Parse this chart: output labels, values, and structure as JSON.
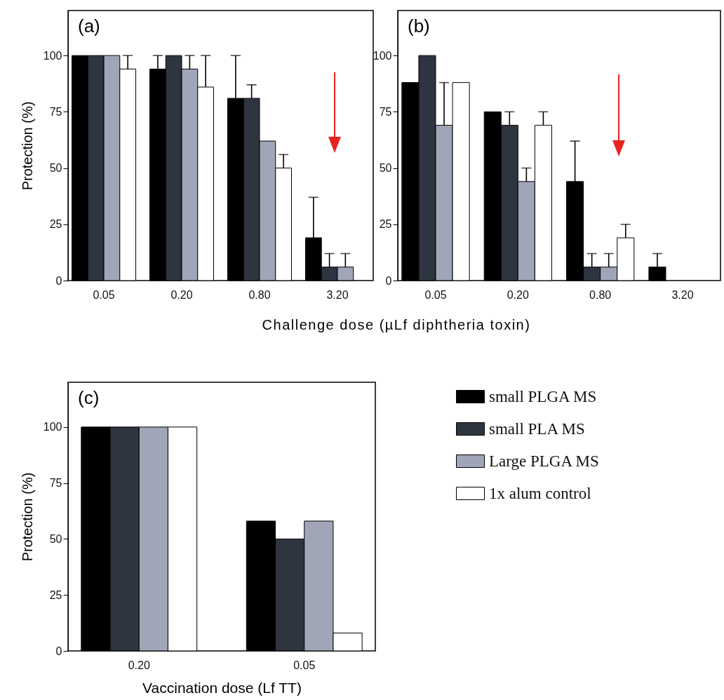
{
  "chart_data": [
    {
      "type": "bar",
      "title": "(a)",
      "xlabel": "Challenge dose (µLf diphtheria toxin)",
      "ylabel": "Protection (%)",
      "categories": [
        "0.05",
        "0.20",
        "0.80",
        "3.20"
      ],
      "ylim": [
        0,
        120
      ],
      "yticks": [
        0,
        25,
        50,
        75,
        100
      ],
      "series": [
        {
          "color": "#000000",
          "values": [
            100,
            94,
            81,
            19
          ],
          "errors": [
            null,
            [
              94,
              100
            ],
            [
              81,
              100
            ],
            [
              19,
              37
            ]
          ]
        },
        {
          "color": "#2e3540",
          "values": [
            100,
            100,
            81,
            6
          ],
          "errors": [
            null,
            null,
            [
              81,
              87
            ],
            [
              6,
              12
            ]
          ]
        },
        {
          "color": "#a0a6b8",
          "values": [
            100,
            94,
            62,
            6
          ],
          "errors": [
            null,
            [
              94,
              100
            ],
            null,
            [
              6,
              12
            ]
          ]
        },
        {
          "color": "#ffffff",
          "values": [
            94,
            86,
            50,
            null
          ],
          "errors": [
            [
              94,
              100
            ],
            [
              86,
              100
            ],
            [
              50,
              56
            ],
            null
          ]
        }
      ]
    },
    {
      "type": "bar",
      "title": "(b)",
      "categories": [
        "0.05",
        "0.20",
        "0.80",
        "3.20"
      ],
      "ylim": [
        0,
        120
      ],
      "yticks": [
        0,
        25,
        50,
        75,
        100
      ],
      "series": [
        {
          "color": "#000000",
          "values": [
            88,
            75,
            44,
            6
          ],
          "errors": [
            null,
            null,
            [
              44,
              62
            ],
            [
              6,
              12
            ]
          ]
        },
        {
          "color": "#2e3540",
          "values": [
            100,
            69,
            6,
            null
          ],
          "errors": [
            null,
            [
              69,
              75
            ],
            [
              6,
              12
            ],
            null
          ]
        },
        {
          "color": "#a0a6b8",
          "values": [
            69,
            44,
            6,
            null
          ],
          "errors": [
            [
              69,
              88
            ],
            [
              44,
              50
            ],
            [
              6,
              12
            ],
            null
          ]
        },
        {
          "color": "#ffffff",
          "values": [
            88,
            69,
            19,
            null
          ],
          "errors": [
            null,
            [
              69,
              75
            ],
            [
              19,
              25
            ],
            null
          ]
        }
      ]
    },
    {
      "type": "bar",
      "title": "(c)",
      "xlabel": "Vaccination dose (Lf TT)",
      "ylabel": "Protection (%)",
      "categories": [
        "0.20",
        "0.05"
      ],
      "ylim": [
        0,
        120
      ],
      "yticks": [
        0,
        25,
        50,
        75,
        100
      ],
      "legend": "right",
      "series": [
        {
          "name": "small PLGA MS",
          "color": "#000000",
          "values": [
            100,
            58
          ]
        },
        {
          "name": "small PLA MS",
          "color": "#2e3540",
          "values": [
            100,
            50
          ]
        },
        {
          "name": "Large PLGA MS",
          "color": "#a0a6b8",
          "values": [
            100,
            58
          ]
        },
        {
          "name": "1x alum control",
          "color": "#ffffff",
          "values": [
            100,
            8
          ]
        }
      ]
    }
  ]
}
